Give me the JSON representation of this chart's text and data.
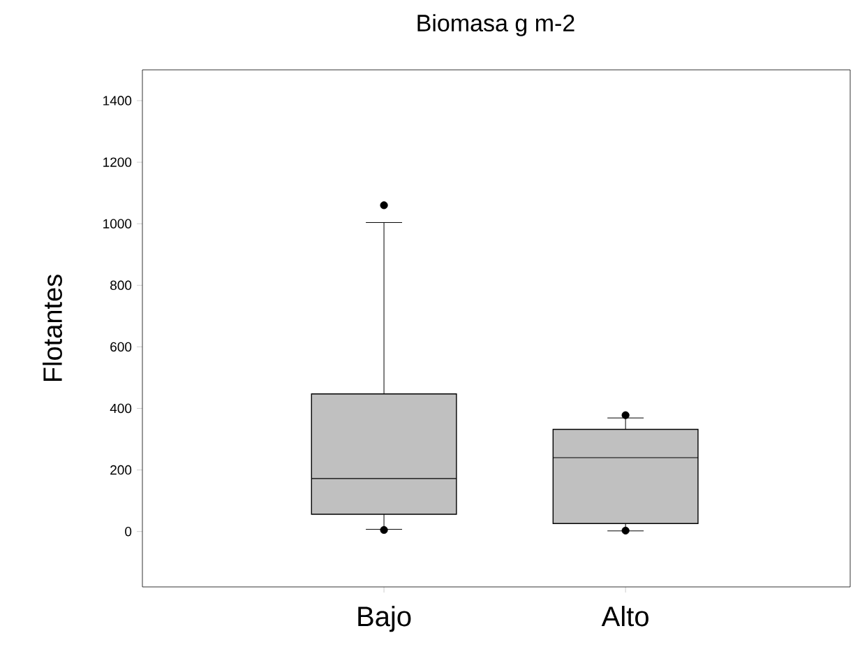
{
  "chart_data": {
    "type": "box",
    "title": "Biomasa g m-2",
    "ylabel": "Flotantes",
    "categories": [
      "Bajo",
      "Alto"
    ],
    "ylim": [
      -180,
      1500
    ],
    "yticks": [
      0,
      200,
      400,
      600,
      800,
      1000,
      1200,
      1400
    ],
    "series": [
      {
        "color": "#c0c0c0",
        "boxes": [
          {
            "low": 7,
            "q1": 56,
            "median": 172,
            "q3": 447,
            "high": 1004,
            "outliers": [
              5,
              1060
            ]
          },
          {
            "low": 2,
            "q1": 26,
            "median": 240,
            "q3": 332,
            "high": 369,
            "outliers": [
              3,
              378
            ]
          }
        ]
      }
    ]
  }
}
